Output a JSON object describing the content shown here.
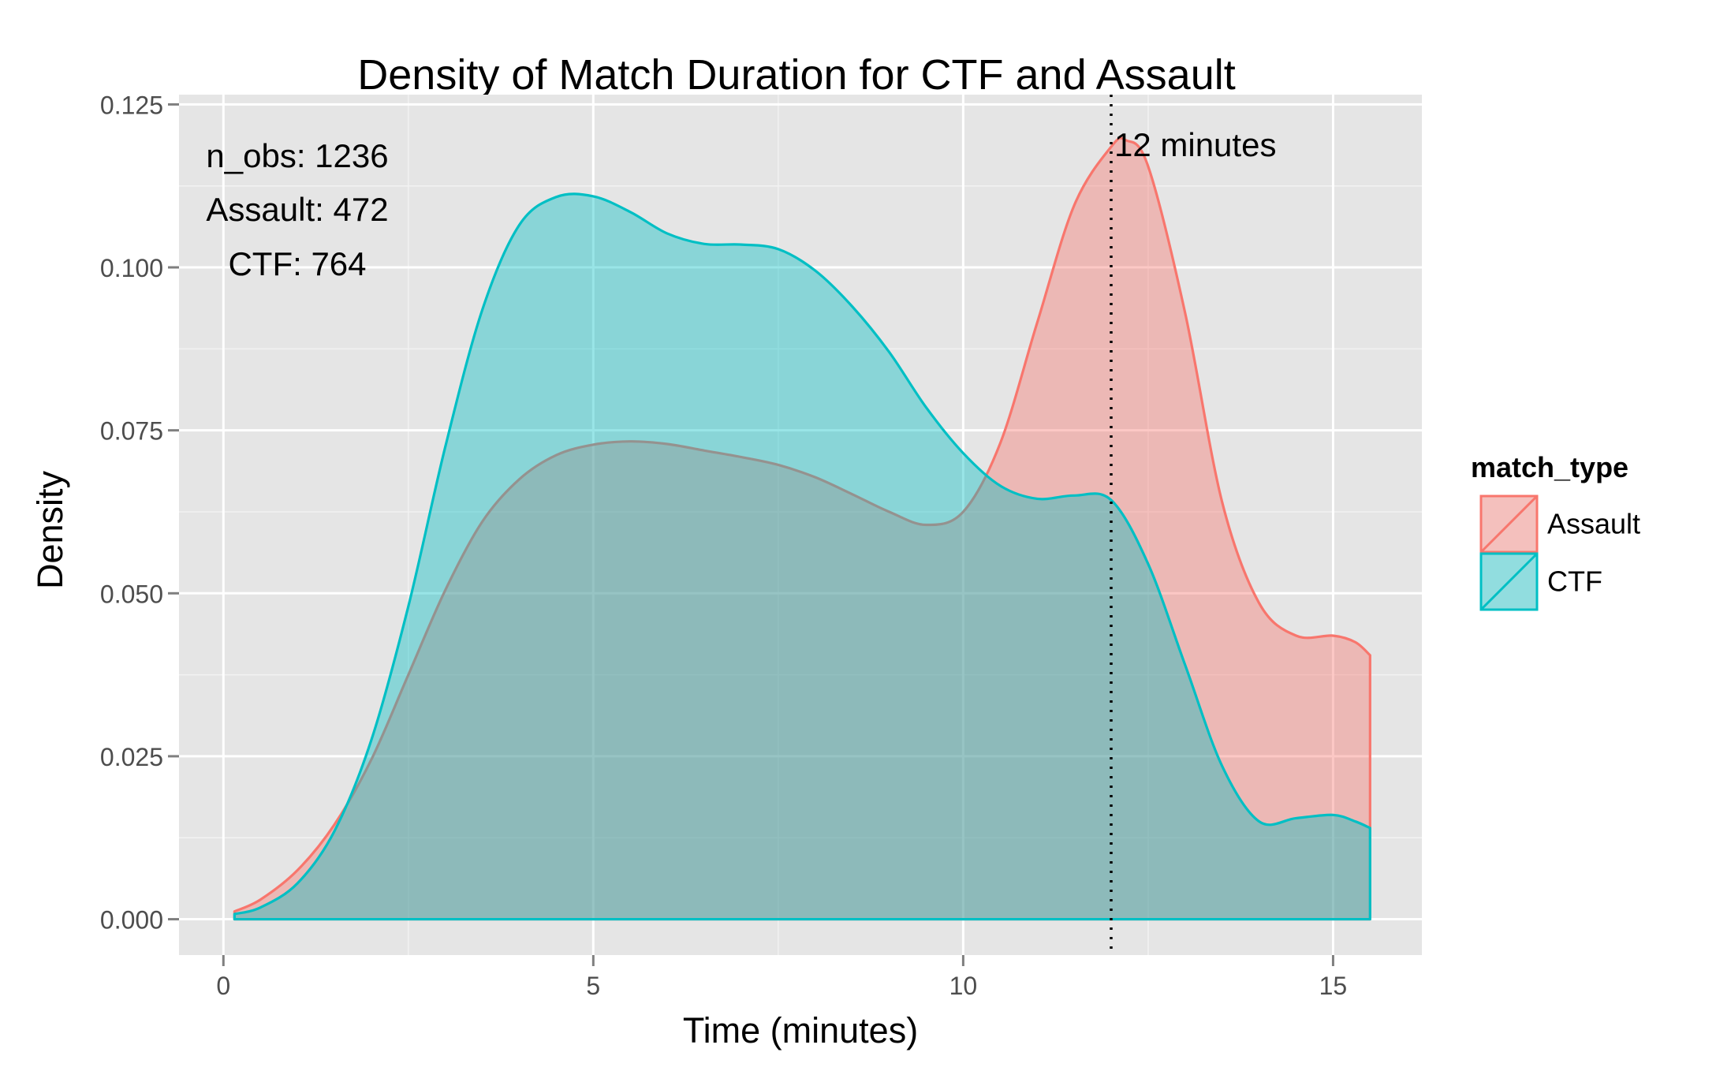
{
  "chart_data": {
    "type": "area",
    "title": "Density of Match Duration for CTF and Assault",
    "xlabel": "Time (minutes)",
    "ylabel": "Density",
    "xlim": [
      -0.6,
      16.2
    ],
    "ylim": [
      -0.0055,
      0.1265
    ],
    "x_ticks": [
      0,
      5,
      10,
      15
    ],
    "x_tick_labels": [
      "0",
      "5",
      "10",
      "15"
    ],
    "y_ticks": [
      0,
      0.025,
      0.05,
      0.075,
      0.1,
      0.125
    ],
    "y_tick_labels": [
      "0.000",
      "0.025",
      "0.050",
      "0.075",
      "0.100",
      "0.125"
    ],
    "grid": true,
    "background": "#e5e5e5",
    "legend": {
      "title": "match_type",
      "position": "right",
      "entries": [
        "Assault",
        "CTF"
      ]
    },
    "annotations": {
      "stats": [
        "n_obs: 1236",
        "Assault: 472",
        "CTF: 764"
      ],
      "vline_label": "12 minutes"
    },
    "vline": {
      "x": 12,
      "style": "dotted"
    },
    "series": [
      {
        "name": "Assault",
        "color": "#f8766d",
        "fill": "#f8766d",
        "fill_opacity": 0.4,
        "x": [
          0.15,
          0.5,
          1.0,
          1.5,
          2.0,
          2.5,
          3.0,
          3.5,
          4.0,
          4.5,
          5.0,
          5.5,
          6.0,
          6.5,
          7.0,
          7.5,
          8.0,
          8.5,
          9.0,
          9.5,
          10.0,
          10.5,
          11.0,
          11.5,
          12.0,
          12.2,
          12.5,
          13.0,
          13.5,
          14.0,
          14.5,
          15.0,
          15.3,
          15.5
        ],
        "y": [
          0.0012,
          0.003,
          0.0075,
          0.0145,
          0.0245,
          0.0375,
          0.0505,
          0.061,
          0.0675,
          0.0712,
          0.0728,
          0.0733,
          0.0729,
          0.0719,
          0.0709,
          0.0697,
          0.0678,
          0.0652,
          0.0625,
          0.0605,
          0.0625,
          0.073,
          0.0915,
          0.1095,
          0.1185,
          0.1195,
          0.1155,
          0.093,
          0.064,
          0.0485,
          0.0435,
          0.0435,
          0.0425,
          0.0405
        ]
      },
      {
        "name": "CTF",
        "color": "#00bfc4",
        "fill": "#00bfc4",
        "fill_opacity": 0.4,
        "x": [
          0.15,
          0.5,
          1.0,
          1.5,
          2.0,
          2.5,
          3.0,
          3.5,
          4.0,
          4.5,
          5.0,
          5.5,
          6.0,
          6.5,
          7.0,
          7.5,
          8.0,
          8.5,
          9.0,
          9.5,
          10.0,
          10.5,
          11.0,
          11.5,
          12.0,
          12.5,
          13.0,
          13.5,
          14.0,
          14.5,
          15.0,
          15.3,
          15.5
        ],
        "y": [
          0.0008,
          0.0018,
          0.0055,
          0.0135,
          0.0275,
          0.048,
          0.0725,
          0.0935,
          0.1065,
          0.1108,
          0.1109,
          0.1085,
          0.1052,
          0.1036,
          0.1035,
          0.1028,
          0.0995,
          0.094,
          0.087,
          0.0785,
          0.0715,
          0.0665,
          0.0645,
          0.065,
          0.0643,
          0.0545,
          0.039,
          0.0235,
          0.015,
          0.0155,
          0.016,
          0.015,
          0.014
        ]
      }
    ]
  }
}
